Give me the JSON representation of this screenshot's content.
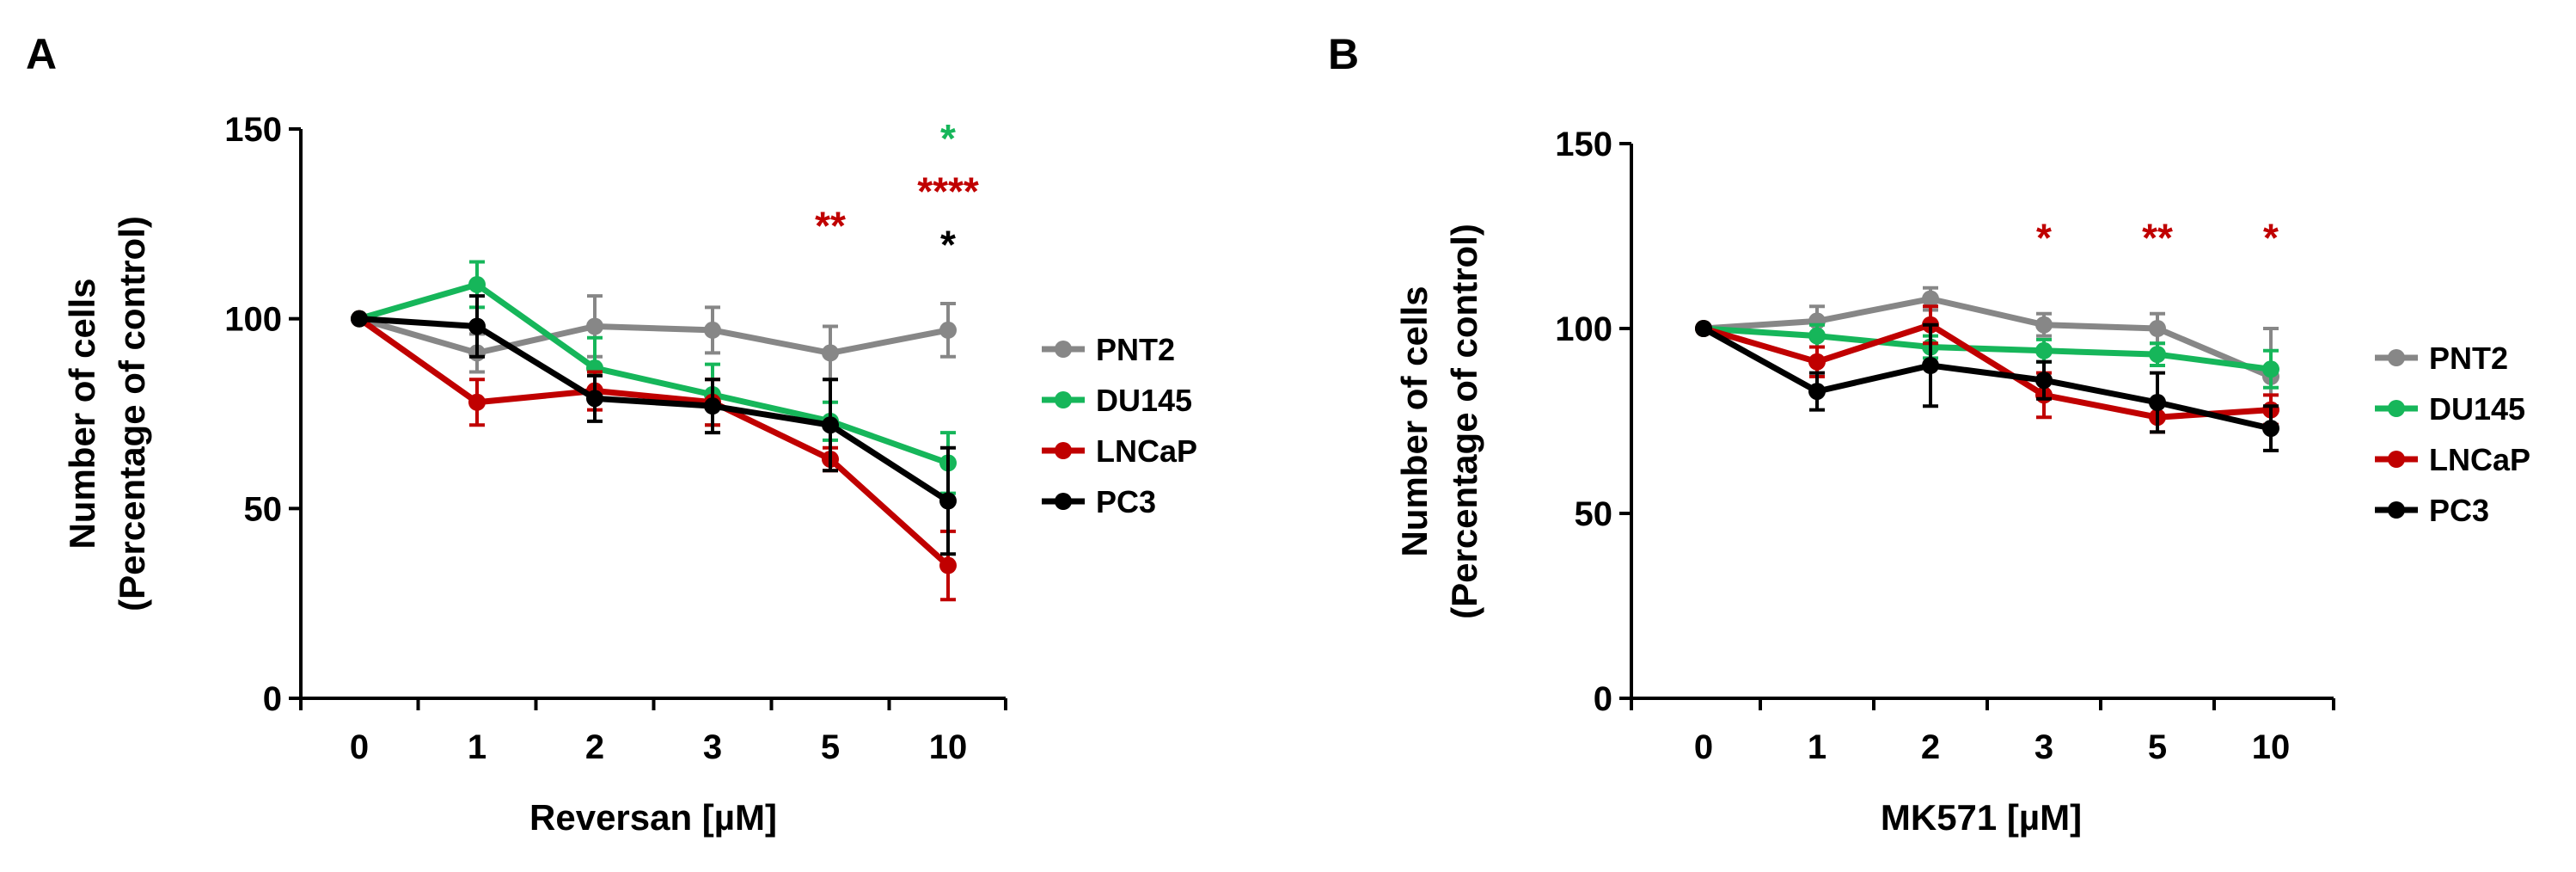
{
  "chart_data": [
    {
      "type": "line",
      "panel_label": "A",
      "xlabel": "Reversan [µM]",
      "ylabel_line1": "Number of cells",
      "ylabel_line2": "(Percentage of control)",
      "categories": [
        "0",
        "1",
        "2",
        "3",
        "5",
        "10"
      ],
      "ylim": [
        0,
        150
      ],
      "yticks": [
        0,
        50,
        100,
        150
      ],
      "legend_position": "right",
      "series": [
        {
          "name": "PNT2",
          "color": "#878787",
          "values": [
            100,
            91,
            98,
            97,
            91,
            97
          ],
          "errors": [
            0,
            5,
            8,
            6,
            7,
            7
          ]
        },
        {
          "name": "DU145",
          "color": "#16b65a",
          "values": [
            100,
            109,
            87,
            80,
            73,
            62
          ],
          "errors": [
            0,
            6,
            8,
            8,
            5,
            8
          ]
        },
        {
          "name": "LNCaP",
          "color": "#c00000",
          "values": [
            100,
            78,
            81,
            78,
            63,
            35
          ],
          "errors": [
            0,
            6,
            5,
            6,
            3,
            9
          ]
        },
        {
          "name": "PC3",
          "color": "#000000",
          "values": [
            100,
            98,
            79,
            77,
            72,
            52
          ],
          "errors": [
            0,
            8,
            6,
            7,
            12,
            14
          ]
        }
      ],
      "annotations": [
        {
          "category": "5",
          "y_level": 125,
          "text": "**",
          "color": "#c00000"
        },
        {
          "category": "10",
          "y_level": 148,
          "text": "*",
          "color": "#16b65a"
        },
        {
          "category": "10",
          "y_level": 134,
          "text": "****",
          "color": "#c00000"
        },
        {
          "category": "10",
          "y_level": 120,
          "text": "*",
          "color": "#000000"
        }
      ]
    },
    {
      "type": "line",
      "panel_label": "B",
      "xlabel": "MK571 [µM]",
      "ylabel_line1": "Number of cells",
      "ylabel_line2": "(Percentage of control)",
      "categories": [
        "0",
        "1",
        "2",
        "3",
        "5",
        "10"
      ],
      "ylim": [
        0,
        150
      ],
      "yticks": [
        0,
        50,
        100,
        150
      ],
      "legend_position": "right",
      "series": [
        {
          "name": "PNT2",
          "color": "#878787",
          "values": [
            100,
            102,
            108,
            101,
            100,
            87
          ],
          "errors": [
            0,
            4,
            3,
            3,
            4,
            13
          ]
        },
        {
          "name": "DU145",
          "color": "#16b65a",
          "values": [
            100,
            98,
            95,
            94,
            93,
            89
          ],
          "errors": [
            0,
            3,
            3,
            3,
            3,
            5
          ]
        },
        {
          "name": "LNCaP",
          "color": "#c00000",
          "values": [
            100,
            91,
            101,
            82,
            76,
            78
          ],
          "errors": [
            0,
            4,
            5,
            6,
            4,
            4
          ]
        },
        {
          "name": "PC3",
          "color": "#000000",
          "values": [
            100,
            83,
            90,
            86,
            80,
            73
          ],
          "errors": [
            0,
            5,
            11,
            5,
            8,
            6
          ]
        }
      ],
      "annotations": [
        {
          "category": "3",
          "y_level": 125,
          "text": "*",
          "color": "#c00000"
        },
        {
          "category": "5",
          "y_level": 125,
          "text": "**",
          "color": "#c00000"
        },
        {
          "category": "10",
          "y_level": 125,
          "text": "*",
          "color": "#c00000"
        }
      ]
    }
  ]
}
